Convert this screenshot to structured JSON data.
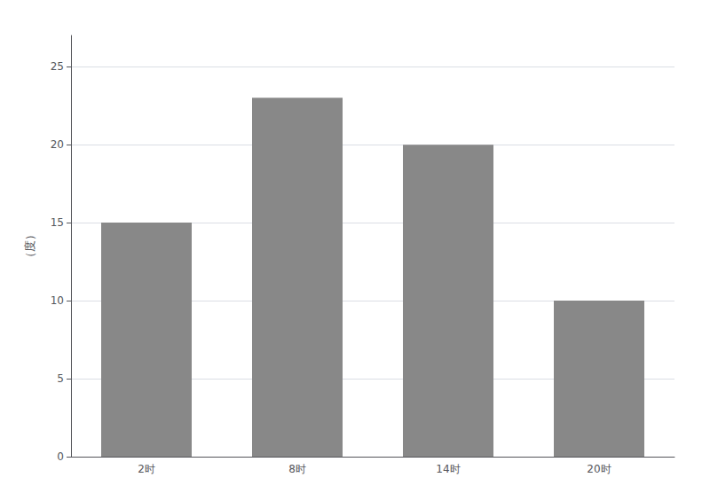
{
  "chart_data": {
    "type": "bar",
    "ylabel": "（度）",
    "categories": [
      "2时",
      "8时",
      "14时",
      "20时"
    ],
    "values": [
      15,
      23,
      20,
      10
    ],
    "color": "#888888",
    "ylim": [
      0,
      27
    ],
    "yticks": [
      0,
      5,
      10,
      15,
      20,
      25
    ],
    "grid": true
  }
}
